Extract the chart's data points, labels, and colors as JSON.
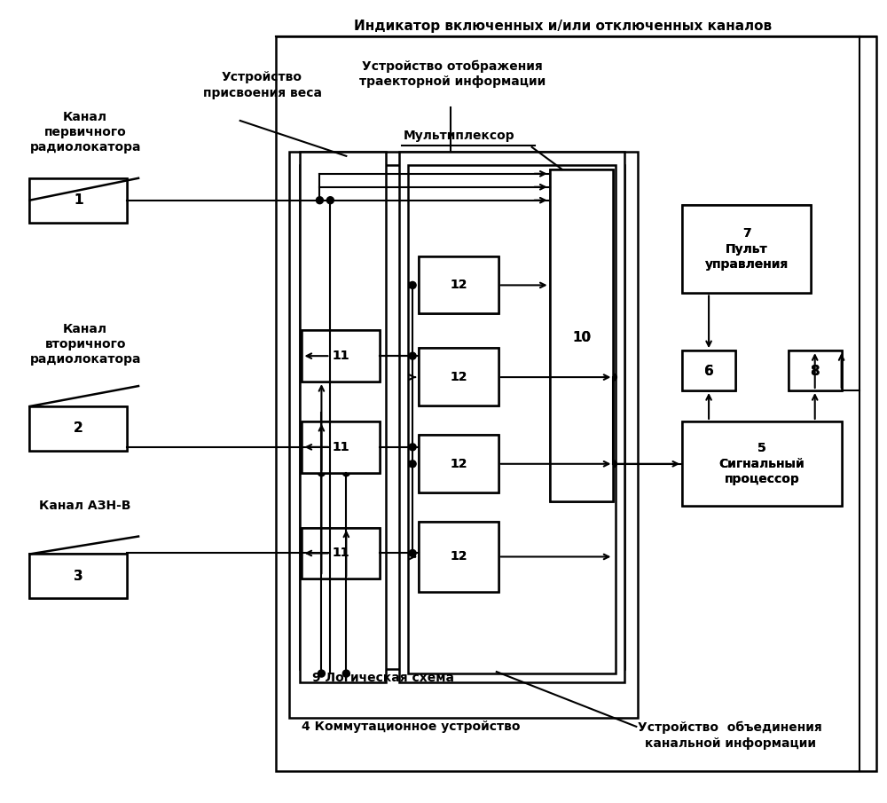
{
  "fig_width": 10.0,
  "fig_height": 9.05,
  "title_label": "Индикатор включенных и/или отключенных каналов",
  "label_kanal1": "Канал\nпервичного\nрадиолокатора",
  "label_kanal2": "Канал\nвторичного\nрадиолокатора",
  "label_kanal3": "Канал АЗН-В",
  "label_uprvesa": "Устройство\nприсвоения веса",
  "label_upr_otr": "Устройство отображения\nтраекторной информации",
  "label_multiplex": "Мультиплексор",
  "label_4": "4 Коммутационное устройство",
  "label_9": "9 Логическая схема",
  "label_5": "5\nСигнальный\nпроцессор",
  "label_7": "7\nПульт\nуправления",
  "label_obj": "Устройство  объединения\nканальной информации"
}
